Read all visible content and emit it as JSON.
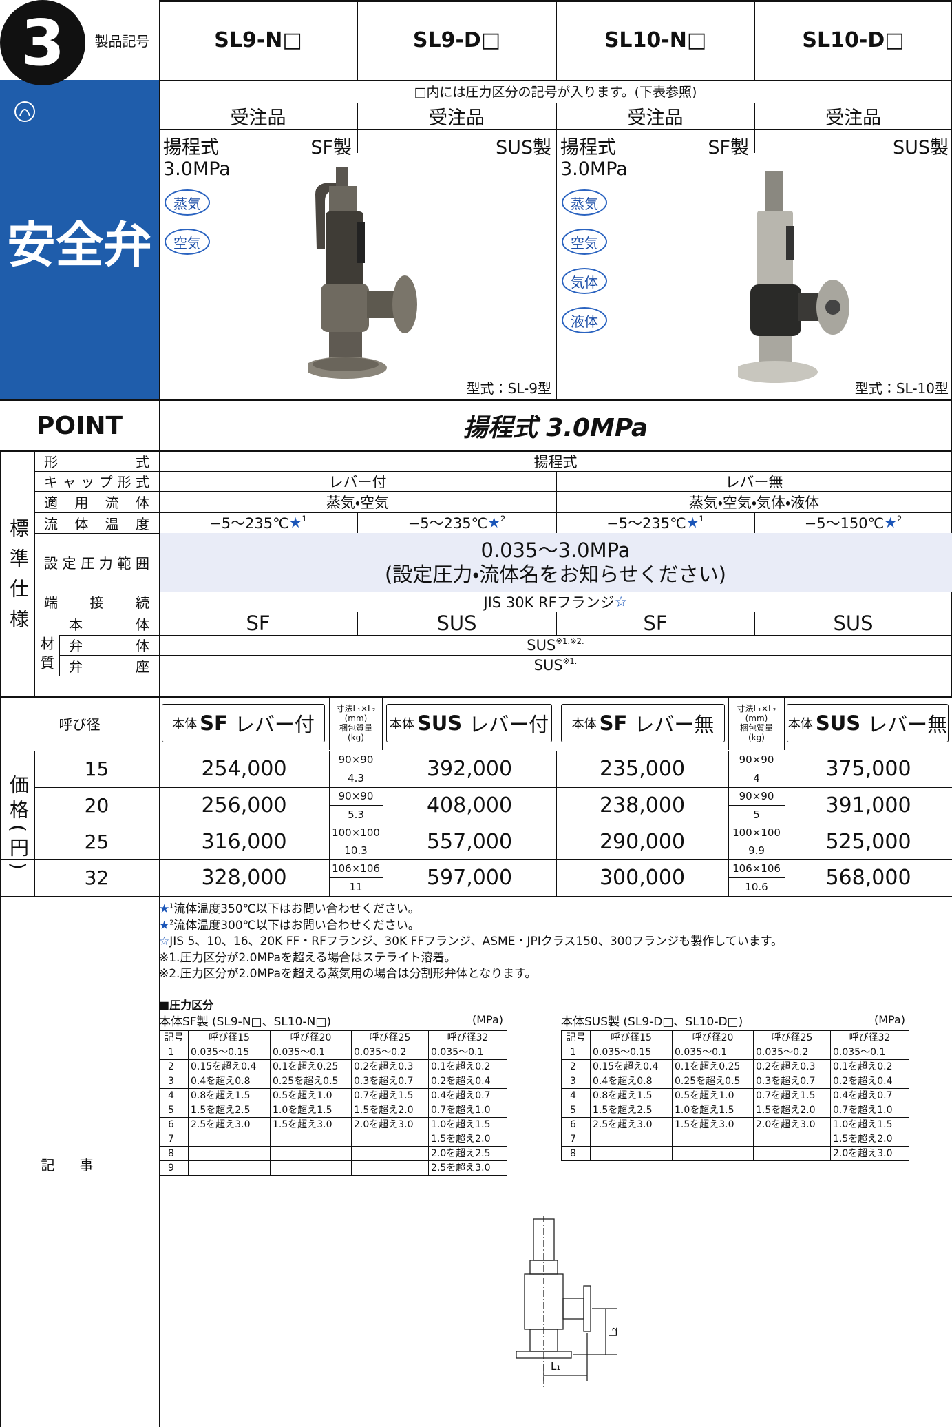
{
  "header": {
    "number": "3",
    "label": "製品記号",
    "category": "安全弁",
    "models": [
      "SL9-N□",
      "SL9-D□",
      "SL10-N□",
      "SL10-D□"
    ]
  },
  "note": "□内には圧力区分の記号が入ります。(下表参照)",
  "order": [
    "受注品",
    "受注品",
    "受注品",
    "受注品"
  ],
  "panels": [
    {
      "type": "揚程式",
      "material_left": "SF製",
      "material_right": "SUS製",
      "pressure": "3.0MPa",
      "fluids": [
        "蒸気",
        "空気"
      ],
      "model": "型式：SL-9型"
    },
    {
      "type": "揚程式",
      "material_left": "SF製",
      "material_right": "SUS製",
      "pressure": "3.0MPa",
      "fluids": [
        "蒸気",
        "空気",
        "気体",
        "液体"
      ],
      "model": "型式：SL-10型"
    }
  ],
  "point": {
    "label": "POINT",
    "text": "揚程式 3.0MPa"
  },
  "spec": {
    "side_label": "標準仕様",
    "material_label": "材質",
    "rows": [
      {
        "label": "形式",
        "cells": [
          "揚程式"
        ]
      },
      {
        "label": "キャップ形式",
        "cells": [
          "レバー付",
          "レバー無"
        ]
      },
      {
        "label": "適用流体",
        "cells": [
          "蒸気・空気",
          "蒸気・空気・気体・液体"
        ]
      },
      {
        "label": "流体温度",
        "cells": [
          {
            "text": "−5〜235℃",
            "mark": "★",
            "sup": "1"
          },
          {
            "text": "−5〜235℃",
            "mark": "★",
            "sup": "2"
          },
          {
            "text": "−5〜235℃",
            "mark": "★",
            "sup": "1"
          },
          {
            "text": "−5〜150℃",
            "mark": "★",
            "sup": "2"
          }
        ]
      },
      {
        "label": "設定圧力範囲",
        "cells": [
          {
            "lines": [
              "0.035〜3.0MPa",
              "(設定圧力・流体名をお知らせください)"
            ]
          }
        ]
      },
      {
        "label": "端接続",
        "cells": [
          {
            "text": "JIS 30K RFフランジ",
            "mark": "☆"
          }
        ]
      },
      {
        "label": "本体",
        "cells": [
          "SF",
          "SUS",
          "SF",
          "SUS"
        ]
      },
      {
        "label": "弁体",
        "cells": [
          {
            "text": "SUS",
            "sup": "※1.※2."
          }
        ]
      },
      {
        "label": "弁座",
        "cells": [
          {
            "text": "SUS",
            "sup": "※1."
          }
        ]
      }
    ]
  },
  "price": {
    "side_label": "価格(円)",
    "size_header": "呼び径",
    "columns": [
      {
        "prefix": "本体",
        "material": "SF",
        "text": "レバー付"
      },
      {
        "prefix": "本体",
        "material": "SUS",
        "text": "レバー付"
      },
      {
        "prefix": "本体",
        "material": "SF",
        "text": "レバー無"
      },
      {
        "prefix": "本体",
        "material": "SUS",
        "text": "レバー無"
      }
    ],
    "dim_header": {
      "dims": "寸法L₁×L₂",
      "dims_unit": "(mm)",
      "weight": "梱包質量",
      "weight_unit": "(kg)"
    },
    "rows": [
      {
        "size": "15",
        "prices": [
          "254,000",
          "392,000",
          "235,000",
          "375,000"
        ],
        "dims": [
          "90×90",
          "90×90"
        ],
        "weights": [
          "4.3",
          "4"
        ]
      },
      {
        "size": "20",
        "prices": [
          "256,000",
          "408,000",
          "238,000",
          "391,000"
        ],
        "dims": [
          "90×90",
          "90×90"
        ],
        "weights": [
          "5.3",
          "5"
        ]
      },
      {
        "size": "25",
        "prices": [
          "316,000",
          "557,000",
          "290,000",
          "525,000"
        ],
        "dims": [
          "100×100",
          "100×100"
        ],
        "weights": [
          "10.3",
          "9.9"
        ]
      },
      {
        "size": "32",
        "prices": [
          "328,000",
          "597,000",
          "300,000",
          "568,000"
        ],
        "dims": [
          "106×106",
          "106×106"
        ],
        "weights": [
          "11",
          "10.6"
        ]
      }
    ]
  },
  "remarks": {
    "side_label": "記事",
    "notes": [
      {
        "mark": "★",
        "sup": "1",
        "text": "流体温度350℃以下はお問い合わせください。"
      },
      {
        "mark": "★",
        "sup": "2",
        "text": "流体温度300℃以下はお問い合わせください。"
      },
      {
        "mark": "☆",
        "text": "JIS 5、10、16、20K FF・RFフランジ、30K FFフランジ、ASME・JPIクラス150、300フランジも製作しています。"
      },
      {
        "text": "※1.圧力区分が2.0MPaを超える場合はステライト溶着。"
      },
      {
        "text": "※2.圧力区分が2.0MPaを超える蒸気用の場合は分割形弁体となります。"
      }
    ],
    "pressure_title": "■圧力区分",
    "tables": [
      {
        "caption": "本体SF製 (SL9-N□、SL10-N□)",
        "unit": "(MPa)",
        "header": [
          "記号",
          "呼び径15",
          "呼び径20",
          "呼び径25",
          "呼び径32"
        ],
        "rows": [
          [
            "1",
            "0.035〜0.15",
            "0.035〜0.1",
            "0.035〜0.2",
            "0.035〜0.1"
          ],
          [
            "2",
            "0.15を超え0.4",
            "0.1を超え0.25",
            "0.2を超え0.3",
            "0.1を超え0.2"
          ],
          [
            "3",
            "0.4を超え0.8",
            "0.25を超え0.5",
            "0.3を超え0.7",
            "0.2を超え0.4"
          ],
          [
            "4",
            "0.8を超え1.5",
            "0.5を超え1.0",
            "0.7を超え1.5",
            "0.4を超え0.7"
          ],
          [
            "5",
            "1.5を超え2.5",
            "1.0を超え1.5",
            "1.5を超え2.0",
            "0.7を超え1.0"
          ],
          [
            "6",
            "2.5を超え3.0",
            "1.5を超え3.0",
            "2.0を超え3.0",
            "1.0を超え1.5"
          ],
          [
            "7",
            null,
            null,
            null,
            "1.5を超え2.0"
          ],
          [
            "8",
            null,
            null,
            null,
            "2.0を超え2.5"
          ],
          [
            "9",
            null,
            null,
            null,
            "2.5を超え3.0"
          ]
        ]
      },
      {
        "caption": "本体SUS製 (SL9-D□、SL10-D□)",
        "unit": "(MPa)",
        "header": [
          "記号",
          "呼び径15",
          "呼び径20",
          "呼び径25",
          "呼び径32"
        ],
        "rows": [
          [
            "1",
            "0.035〜0.15",
            "0.035〜0.1",
            "0.035〜0.2",
            "0.035〜0.1"
          ],
          [
            "2",
            "0.15を超え0.4",
            "0.1を超え0.25",
            "0.2を超え0.3",
            "0.1を超え0.2"
          ],
          [
            "3",
            "0.4を超え0.8",
            "0.25を超え0.5",
            "0.3を超え0.7",
            "0.2を超え0.4"
          ],
          [
            "4",
            "0.8を超え1.5",
            "0.5を超え1.0",
            "0.7を超え1.5",
            "0.4を超え0.7"
          ],
          [
            "5",
            "1.5を超え2.5",
            "1.0を超え1.5",
            "1.5を超え2.0",
            "0.7を超え1.0"
          ],
          [
            "6",
            "2.5を超え3.0",
            "1.5を超え3.0",
            "2.0を超え3.0",
            "1.0を超え1.5"
          ],
          [
            "7",
            null,
            null,
            null,
            "1.5を超え2.0"
          ],
          [
            "8",
            null,
            null,
            null,
            "2.0を超え3.0"
          ]
        ]
      }
    ],
    "diagram_labels": [
      "L₁",
      "L₂"
    ]
  }
}
